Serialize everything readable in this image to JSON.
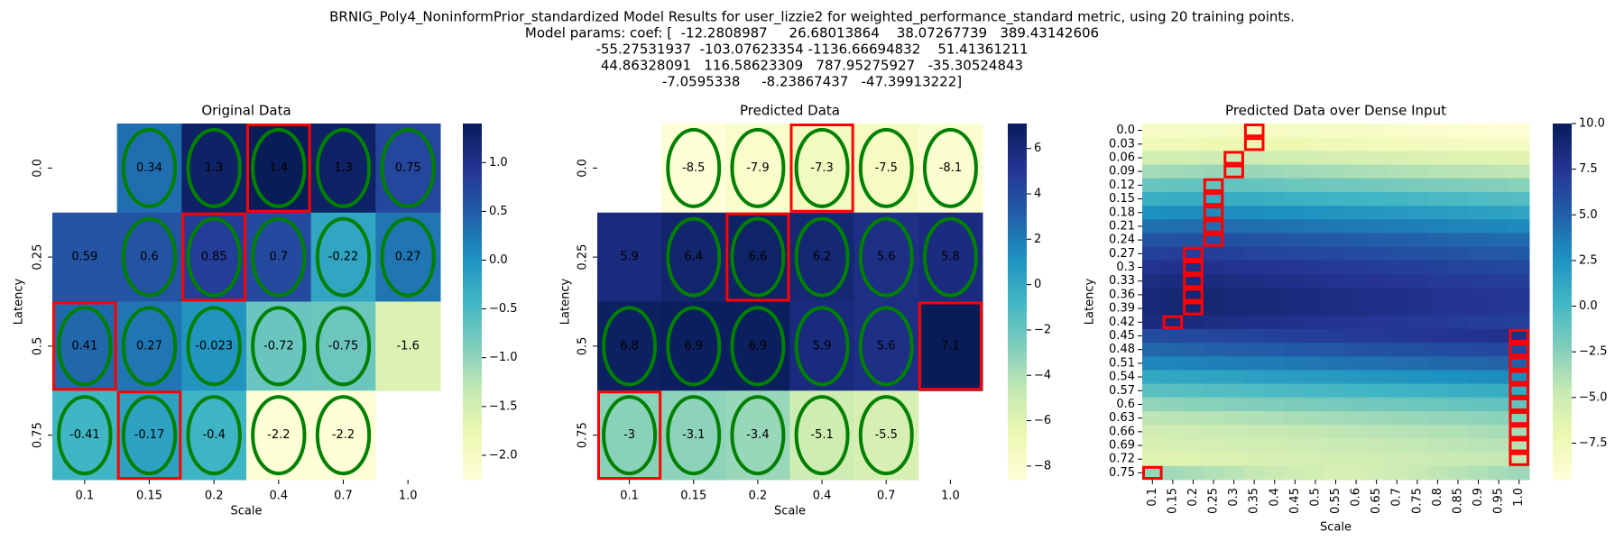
{
  "suptitle": [
    "BRNIG_Poly4_NoninformPrior_standardized Model Results for user_lizzie2 for weighted_performance_standard metric, using 20 training points.",
    "Model params: coef: [  -12.2808987     26.68013864    38.07267739   389.43142606",
    "-55.27531937  -103.07623354 -1136.66694832    51.41361211",
    "44.86328091   116.58623309   787.95275927   -35.30524843",
    "-7.0595338     -8.23867437   -47.39913222]"
  ],
  "chart_data": [
    {
      "type": "heatmap",
      "title": "Original Data",
      "xlabel": "Scale",
      "ylabel": "Latency",
      "x": [
        "0.1",
        "0.15",
        "0.2",
        "0.4",
        "0.7",
        "1.0"
      ],
      "y": [
        "0.0",
        "0.25",
        "0.5",
        "0.75"
      ],
      "values": [
        [
          null,
          0.34,
          1.3,
          1.4,
          1.3,
          0.75
        ],
        [
          0.59,
          0.6,
          0.85,
          0.7,
          -0.22,
          0.27
        ],
        [
          0.41,
          0.27,
          -0.023,
          -0.72,
          -0.75,
          -1.6
        ],
        [
          -0.41,
          -0.17,
          -0.4,
          -2.2,
          -2.2,
          null
        ]
      ],
      "annotate": true,
      "mark_row_max": true,
      "colormap": "YlGnBu",
      "clim": [
        -2.25,
        1.4
      ],
      "cbar_ticks": [
        {
          "value": 1.0,
          "label": "1.0"
        },
        0.5,
        {
          "value": 0,
          "label": "0.0"
        },
        {
          "value": -0.5,
          "label": "−0.5"
        },
        {
          "value": -1.0,
          "label": "−1.0"
        },
        {
          "value": -1.5,
          "label": "−1.5"
        },
        {
          "value": -2.0,
          "label": "−2.0"
        }
      ],
      "x_tick_rotation": 0,
      "y_tick_rotation": 90,
      "training_points": [
        [
          "0.15",
          "0.0"
        ],
        [
          "0.2",
          "0.0"
        ],
        [
          "0.4",
          "0.0"
        ],
        [
          "0.7",
          "0.0"
        ],
        [
          "1.0",
          "0.0"
        ],
        [
          "0.15",
          "0.25"
        ],
        [
          "0.2",
          "0.25"
        ],
        [
          "0.4",
          "0.25"
        ],
        [
          "0.7",
          "0.25"
        ],
        [
          "1.0",
          "0.25"
        ],
        [
          "0.1",
          "0.5"
        ],
        [
          "0.15",
          "0.5"
        ],
        [
          "0.2",
          "0.5"
        ],
        [
          "0.4",
          "0.5"
        ],
        [
          "0.7",
          "0.5"
        ],
        [
          "0.1",
          "0.75"
        ],
        [
          "0.15",
          "0.75"
        ],
        [
          "0.2",
          "0.75"
        ],
        [
          "0.4",
          "0.75"
        ],
        [
          "0.7",
          "0.75"
        ]
      ]
    },
    {
      "type": "heatmap",
      "title": "Predicted Data",
      "xlabel": "Scale",
      "ylabel": "Latency",
      "x": [
        "0.1",
        "0.15",
        "0.2",
        "0.4",
        "0.7",
        "1.0"
      ],
      "y": [
        "0.0",
        "0.25",
        "0.5",
        "0.75"
      ],
      "values": [
        [
          null,
          -8.5,
          -7.9,
          -7.3,
          -7.5,
          -8.1
        ],
        [
          5.9,
          6.4,
          6.6,
          6.2,
          5.6,
          5.8
        ],
        [
          6.8,
          6.9,
          6.9,
          5.9,
          5.6,
          7.1
        ],
        [
          -3,
          -3.1,
          -3.4,
          -5.1,
          -5.5,
          null
        ]
      ],
      "annotate": true,
      "mark_row_max": true,
      "colormap": "YlGnBu",
      "clim": [
        -8.6,
        7.1
      ],
      "cbar_ticks": [
        6,
        4,
        2,
        0,
        {
          "value": -2,
          "label": "−2"
        },
        {
          "value": -4,
          "label": "−4"
        },
        {
          "value": -6,
          "label": "−6"
        },
        {
          "value": -8,
          "label": "−8"
        }
      ],
      "x_tick_rotation": 0,
      "y_tick_rotation": 90,
      "training_points": [
        [
          "0.15",
          "0.0"
        ],
        [
          "0.2",
          "0.0"
        ],
        [
          "0.4",
          "0.0"
        ],
        [
          "0.7",
          "0.0"
        ],
        [
          "1.0",
          "0.0"
        ],
        [
          "0.15",
          "0.25"
        ],
        [
          "0.2",
          "0.25"
        ],
        [
          "0.4",
          "0.25"
        ],
        [
          "0.7",
          "0.25"
        ],
        [
          "1.0",
          "0.25"
        ],
        [
          "0.1",
          "0.5"
        ],
        [
          "0.15",
          "0.5"
        ],
        [
          "0.2",
          "0.5"
        ],
        [
          "0.4",
          "0.5"
        ],
        [
          "0.7",
          "0.5"
        ],
        [
          "0.1",
          "0.75"
        ],
        [
          "0.15",
          "0.75"
        ],
        [
          "0.2",
          "0.75"
        ],
        [
          "0.4",
          "0.75"
        ],
        [
          "0.7",
          "0.75"
        ]
      ]
    },
    {
      "type": "heatmap",
      "title": "Predicted Data over Dense Input",
      "xlabel": "Scale",
      "ylabel": "Latency",
      "x": [
        "0.1",
        "0.15",
        "0.2",
        "0.25",
        "0.3",
        "0.35",
        "0.4",
        "0.45",
        "0.5",
        "0.55",
        "0.6",
        "0.65",
        "0.7",
        "0.75",
        "0.8",
        "0.85",
        "0.9",
        "0.95",
        "1.0"
      ],
      "y": [
        "0.0",
        "0.03",
        "0.06",
        "0.09",
        "0.12",
        "0.15",
        "0.18",
        "0.21",
        "0.24",
        "0.27",
        "0.3",
        "0.33",
        "0.36",
        "0.39",
        "0.42",
        "0.45",
        "0.48",
        "0.51",
        "0.54",
        "0.57",
        "0.6",
        "0.63",
        "0.66",
        "0.69",
        "0.72",
        "0.75"
      ],
      "values": [
        [
          -8.5,
          -8.4,
          -8.3,
          -8.2,
          -8.1,
          -8,
          -8.1,
          -8.2,
          -8.3,
          -8.4,
          -8.5,
          -8.6,
          -8.7,
          -8.8,
          -8.9,
          -9,
          -9.1,
          -9.2,
          -9.3
        ],
        [
          -7.5,
          -7.4,
          -7.3,
          -7.2,
          -7.1,
          -7,
          -7.1,
          -7.2,
          -7.3,
          -7.4,
          -7.5,
          -7.6,
          -7.7,
          -7.8,
          -7.9,
          -8,
          -8.1,
          -8.2,
          -8.3
        ],
        [
          -5.4,
          -5.3,
          -5.2,
          -5.1,
          -5,
          -5.1,
          -5.2,
          -5.3,
          -5.4,
          -5.5,
          -5.6,
          -5.7,
          -5.8,
          -5.9,
          -6,
          -6.1,
          -6.2,
          -6.3,
          -6.4
        ],
        [
          -3.4,
          -3.3,
          -3.2,
          -3.1,
          -3,
          -3.1,
          -3.2,
          -3.3,
          -3.4,
          -3.5,
          -3.6,
          -3.7,
          -3.8,
          -3.9,
          -4,
          -4.1,
          -4.2,
          -4.3,
          -4.4
        ],
        [
          -1.3,
          -1.2,
          -1.1,
          -1,
          -1.1,
          -1.2,
          -1.3,
          -1.4,
          -1.5,
          -1.6,
          -1.7,
          -1.8,
          -1.9,
          -2,
          -2.1,
          -2.2,
          -2.3,
          -2.4,
          -2.5
        ],
        [
          0.7,
          0.8,
          0.9,
          1,
          0.9,
          0.8,
          0.7,
          0.6,
          0.5,
          0.4,
          0.3,
          0.2,
          0.1,
          0,
          -0.1,
          -0.2,
          -0.3,
          -0.4,
          -0.5
        ],
        [
          2.7,
          2.8,
          2.9,
          3,
          2.9,
          2.8,
          2.7,
          2.6,
          2.5,
          2.4,
          2.3,
          2.2,
          2.1,
          2,
          1.9,
          1.8,
          1.7,
          1.6,
          1.5
        ],
        [
          4.2,
          4.3,
          4.4,
          4.5,
          4.4,
          4.3,
          4.2,
          4.1,
          4,
          3.9,
          3.8,
          3.7,
          3.6,
          3.5,
          3.4,
          3.3,
          3.2,
          3.1,
          3
        ],
        [
          5.7,
          5.8,
          5.9,
          6,
          5.9,
          5.8,
          5.7,
          5.6,
          5.5,
          5.4,
          5.3,
          5.2,
          5.1,
          5,
          4.9,
          4.8,
          4.7,
          4.6,
          4.5
        ],
        [
          6.8,
          6.9,
          7,
          6.9,
          6.8,
          6.7,
          6.6,
          6.5,
          6.4,
          6.3,
          6.2,
          6.1,
          6,
          5.9,
          5.8,
          5.7,
          5.6,
          5.5,
          5.4
        ],
        [
          7.8,
          7.9,
          8,
          7.9,
          7.8,
          7.7,
          7.6,
          7.5,
          7.4,
          7.3,
          7.2,
          7.1,
          7,
          6.9,
          6.8,
          6.7,
          6.6,
          6.5,
          6.4
        ],
        [
          8.3,
          8.4,
          8.5,
          8.4,
          8.3,
          8.2,
          8.1,
          8,
          7.9,
          7.8,
          7.7,
          7.6,
          7.5,
          7.4,
          7.3,
          7.2,
          7.1,
          7,
          6.9
        ],
        [
          8.8,
          8.9,
          9,
          8.9,
          8.8,
          8.7,
          8.6,
          8.5,
          8.4,
          8.3,
          8.2,
          8.1,
          8,
          7.9,
          7.8,
          7.7,
          7.6,
          7.5,
          7.4
        ],
        [
          8.8,
          8.9,
          9,
          8.9,
          8.8,
          8.7,
          8.6,
          8.5,
          8.4,
          8.3,
          8.2,
          8.1,
          8,
          7.9,
          7.8,
          7.7,
          7.6,
          7.5,
          7.4
        ],
        [
          8.4,
          8.5,
          8.4,
          8.3,
          8.2,
          8.1,
          8,
          7.9,
          7.8,
          7.7,
          7.6,
          7.5,
          7.4,
          7.3,
          7.2,
          7.1,
          7,
          6.9,
          6.8
        ],
        [
          6.2,
          6.3,
          6.4,
          6.5,
          6.6,
          6.7,
          6.8,
          6.9,
          7,
          7.1,
          7.2,
          7.3,
          7.4,
          7.5,
          7.6,
          7.7,
          7.8,
          7.9,
          8
        ],
        [
          4.7,
          4.8,
          4.9,
          5,
          5.1,
          5.2,
          5.3,
          5.4,
          5.5,
          5.6,
          5.7,
          5.8,
          5.9,
          6,
          6.1,
          6.2,
          6.3,
          6.4,
          6.5
        ],
        [
          3.2,
          3.3,
          3.4,
          3.5,
          3.6,
          3.7,
          3.8,
          3.9,
          4,
          4.1,
          4.2,
          4.3,
          4.4,
          4.5,
          4.6,
          4.7,
          4.8,
          4.9,
          5
        ],
        [
          1.2,
          1.3,
          1.4,
          1.5,
          1.6,
          1.7,
          1.8,
          1.9,
          2,
          2.1,
          2.2,
          2.3,
          2.4,
          2.5,
          2.6,
          2.7,
          2.8,
          2.9,
          3
        ],
        [
          -0.8,
          -0.7,
          -0.6,
          -0.5,
          -0.4,
          -0.3,
          -0.2,
          -0.1,
          0,
          0.1,
          0.2,
          0.3,
          0.4,
          0.5,
          0.6,
          0.7,
          0.8,
          0.9,
          1
        ],
        [
          -2.8,
          -2.7,
          -2.6,
          -2.5,
          -2.4,
          -2.3,
          -2.2,
          -2.1,
          -2,
          -1.9,
          -1.8,
          -1.7,
          -1.6,
          -1.5,
          -1.4,
          -1.3,
          -1.2,
          -1.1,
          -1
        ],
        [
          -4.3,
          -4.2,
          -4.1,
          -4,
          -3.9,
          -3.8,
          -3.7,
          -3.6,
          -3.5,
          -3.4,
          -3.3,
          -3.2,
          -3.1,
          -3,
          -2.9,
          -2.8,
          -2.7,
          -2.6,
          -2.5
        ],
        [
          -5.3,
          -5.2,
          -5.1,
          -5,
          -4.9,
          -4.8,
          -4.7,
          -4.6,
          -4.5,
          -4.4,
          -4.3,
          -4.2,
          -4.1,
          -4,
          -3.9,
          -3.8,
          -3.7,
          -3.6,
          -3.5
        ],
        [
          -5.8,
          -5.7,
          -5.6,
          -5.5,
          -5.4,
          -5.3,
          -5.2,
          -5.1,
          -5,
          -4.9,
          -4.8,
          -4.7,
          -4.6,
          -4.5,
          -4.4,
          -4.3,
          -4.2,
          -4.1,
          -4
        ],
        [
          -6.3,
          -6.2,
          -6.1,
          -6,
          -5.9,
          -5.8,
          -5.7,
          -5.6,
          -5.5,
          -5.4,
          -5.3,
          -5.2,
          -5.1,
          -5,
          -4.9,
          -4.8,
          -4.7,
          -4.6,
          -4.5
        ],
        [
          -3,
          -3.3,
          -3.6,
          -3.9,
          -4.2,
          -4.5,
          -4.8,
          -5.1,
          -5.4,
          -5.7,
          -5.6,
          -5.3,
          -5,
          -4.7,
          -4.4,
          -4.1,
          -3.8,
          -3.5,
          -3.2
        ]
      ],
      "annotate": false,
      "mark_row_max": true,
      "colormap": "YlGnBu",
      "clim": [
        -9.5,
        10
      ],
      "cbar_ticks": [
        {
          "value": 10,
          "label": "10.0"
        },
        7.5,
        {
          "value": 5,
          "label": "5.0"
        },
        2.5,
        {
          "value": 0,
          "label": "0.0"
        },
        {
          "value": -2.5,
          "label": "−2.5"
        },
        {
          "value": -5,
          "label": "−5.0"
        },
        {
          "value": -7.5,
          "label": "−7.5"
        }
      ],
      "x_tick_rotation": 90,
      "y_tick_rotation": 0
    }
  ]
}
